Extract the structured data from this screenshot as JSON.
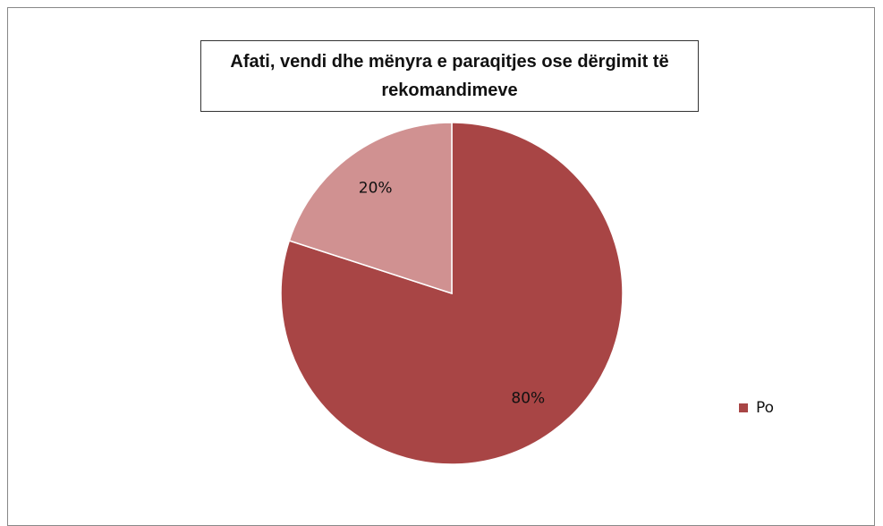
{
  "chart_data": {
    "type": "pie",
    "title": "Afati, vendi dhe mënyra e paraqitjes ose dërgimit të rekomandimeve",
    "categories": [
      "Po",
      null
    ],
    "values": [
      80,
      20
    ],
    "value_labels": [
      "80%",
      "20%"
    ],
    "colors": [
      "#a84545",
      "#d09191"
    ],
    "legend": "right"
  }
}
